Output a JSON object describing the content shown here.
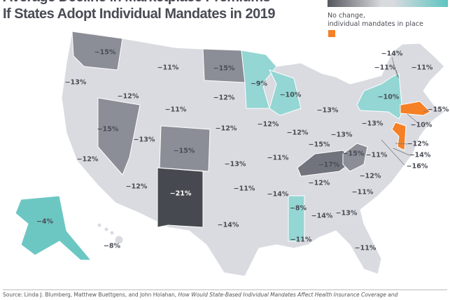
{
  "title_line1": "Average Decline in Marketplace Premiums",
  "title_line2": "If States Adopt Individual Mandates in 2019",
  "legend": {
    "scale": "gradient dark gray (larger decline) to teal (smaller decline)",
    "no_change_line1": "No change,",
    "no_change_line2": "individual mandates in place",
    "no_change_color": "#f58025"
  },
  "colors": {
    "base": "#d9dbe0",
    "mid_dark": "#8b8e97",
    "dark": "#71747d",
    "darkest": "#46494f",
    "teal": "#93d6d3",
    "teal_strong": "#6cc7c3",
    "orange": "#f58025"
  },
  "labels": [
    "−15%",
    "−13%",
    "−12%",
    "−11%",
    "−15%",
    "−9%",
    "−10%",
    "−13%",
    "−10%",
    "−14%",
    "−11%",
    "−11%",
    "−15%",
    "−10%",
    "−12%",
    "−14%",
    "−16%",
    "−11%",
    "−12%",
    "−12%",
    "−12%",
    "−12%",
    "−15%",
    "−13%",
    "−13%",
    "−15%",
    "−11%",
    "−17%",
    "−15%",
    "−13%",
    "−15%",
    "−12%",
    "−13%",
    "−11%",
    "−12%",
    "−12%",
    "−12%",
    "−21%",
    "−11%",
    "−14%",
    "−8%",
    "−14%",
    "−13%",
    "−11%",
    "−14%",
    "−11%",
    "−11%",
    "−4%",
    "−8%"
  ],
  "source_plain": "Source: Linda J. Blumberg, Matthew Buettgens, and John Holahan, ",
  "source_italic": "How Would State-Based Individual Mandates Affect Health Insurance Coverage and"
}
